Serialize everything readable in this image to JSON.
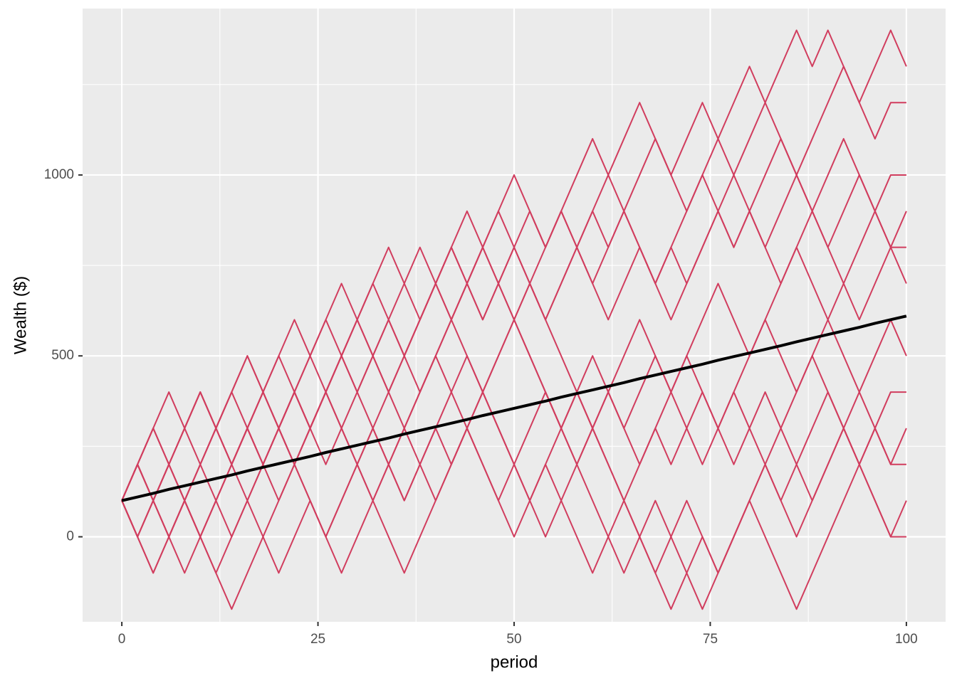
{
  "chart_data": {
    "type": "line",
    "x_label": "period",
    "y_label": "Wealth ($)",
    "x": [
      0,
      2,
      4,
      6,
      8,
      10,
      12,
      14,
      16,
      18,
      20,
      22,
      24,
      26,
      28,
      30,
      32,
      34,
      36,
      38,
      40,
      42,
      44,
      46,
      48,
      50,
      52,
      54,
      56,
      58,
      60,
      62,
      64,
      66,
      68,
      70,
      72,
      74,
      76,
      78,
      80,
      82,
      84,
      86,
      88,
      90,
      92,
      94,
      96,
      98,
      100
    ],
    "xlim": [
      -5,
      105
    ],
    "xticks": [
      0,
      25,
      50,
      75,
      100
    ],
    "ylim": [
      -235,
      1460
    ],
    "yticks": [
      0,
      500,
      1000
    ],
    "grid": true,
    "background": "#ebebeb",
    "series": [
      {
        "color": "#d13d5e",
        "values": [
          100,
          200,
          300,
          200,
          300,
          400,
          300,
          400,
          500,
          400,
          500,
          600,
          500,
          600,
          700,
          600,
          700,
          800,
          700,
          800,
          700,
          800,
          900,
          800,
          900,
          1000,
          900,
          800,
          900,
          1000,
          1100,
          1000,
          1100,
          1200,
          1100,
          1000,
          1100,
          1200,
          1100,
          1200,
          1300,
          1200,
          1300,
          1400,
          1300,
          1400,
          1300,
          1200,
          1300,
          1400,
          1300
        ]
      },
      {
        "color": "#d13d5e",
        "values": [
          100,
          200,
          100,
          200,
          300,
          400,
          300,
          200,
          300,
          400,
          500,
          400,
          300,
          400,
          500,
          600,
          500,
          600,
          700,
          600,
          700,
          800,
          700,
          600,
          700,
          800,
          900,
          800,
          900,
          800,
          900,
          1000,
          900,
          1000,
          1100,
          1000,
          900,
          1000,
          1100,
          1000,
          1100,
          1200,
          1100,
          1000,
          1100,
          1200,
          1300,
          1200,
          1100,
          1200,
          1200
        ]
      },
      {
        "color": "#d13d5e",
        "values": [
          100,
          0,
          100,
          200,
          100,
          200,
          300,
          200,
          300,
          200,
          300,
          400,
          300,
          400,
          500,
          400,
          500,
          600,
          500,
          400,
          500,
          600,
          700,
          600,
          700,
          800,
          700,
          600,
          700,
          800,
          700,
          800,
          900,
          800,
          700,
          800,
          900,
          1000,
          900,
          800,
          900,
          1000,
          1100,
          1000,
          900,
          1000,
          1100,
          1000,
          900,
          1000,
          1000
        ]
      },
      {
        "color": "#d13d5e",
        "values": [
          100,
          200,
          300,
          400,
          300,
          400,
          300,
          200,
          300,
          400,
          300,
          200,
          300,
          400,
          500,
          600,
          700,
          600,
          500,
          600,
          700,
          800,
          700,
          800,
          900,
          800,
          700,
          600,
          700,
          800,
          900,
          800,
          900,
          800,
          700,
          800,
          700,
          800,
          900,
          1000,
          900,
          800,
          900,
          1000,
          900,
          800,
          900,
          1000,
          900,
          800,
          900
        ]
      },
      {
        "color": "#d13d5e",
        "values": [
          100,
          0,
          -100,
          0,
          100,
          0,
          100,
          200,
          100,
          200,
          300,
          400,
          500,
          400,
          500,
          600,
          500,
          400,
          500,
          600,
          700,
          600,
          700,
          800,
          700,
          600,
          700,
          800,
          900,
          800,
          700,
          600,
          700,
          800,
          700,
          600,
          700,
          800,
          900,
          800,
          900,
          800,
          700,
          800,
          900,
          800,
          700,
          800,
          900,
          800,
          800
        ]
      },
      {
        "color": "#d13d5e",
        "values": [
          100,
          200,
          300,
          200,
          100,
          200,
          300,
          400,
          500,
          400,
          300,
          200,
          300,
          400,
          300,
          200,
          100,
          200,
          300,
          400,
          500,
          600,
          500,
          400,
          500,
          600,
          500,
          400,
          300,
          400,
          500,
          400,
          500,
          600,
          500,
          400,
          500,
          600,
          700,
          600,
          500,
          600,
          700,
          800,
          700,
          600,
          700,
          600,
          700,
          800,
          700
        ]
      },
      {
        "color": "#d13d5e",
        "values": [
          100,
          0,
          100,
          0,
          -100,
          0,
          100,
          200,
          300,
          200,
          100,
          200,
          300,
          400,
          300,
          200,
          300,
          200,
          100,
          200,
          300,
          400,
          500,
          400,
          500,
          600,
          700,
          600,
          500,
          400,
          300,
          400,
          300,
          200,
          300,
          400,
          500,
          400,
          300,
          400,
          500,
          600,
          500,
          400,
          500,
          600,
          500,
          400,
          500,
          600,
          500
        ]
      },
      {
        "color": "#d13d5e",
        "values": [
          100,
          200,
          100,
          0,
          100,
          200,
          300,
          400,
          300,
          200,
          300,
          400,
          500,
          600,
          500,
          400,
          300,
          400,
          500,
          600,
          700,
          600,
          700,
          800,
          700,
          600,
          500,
          400,
          300,
          200,
          300,
          200,
          100,
          200,
          300,
          200,
          300,
          400,
          300,
          200,
          300,
          400,
          300,
          200,
          100,
          200,
          300,
          400,
          300,
          400,
          400
        ]
      },
      {
        "color": "#d13d5e",
        "values": [
          100,
          0,
          -100,
          0,
          100,
          0,
          -100,
          -200,
          -100,
          0,
          100,
          200,
          100,
          0,
          100,
          200,
          300,
          200,
          300,
          400,
          500,
          400,
          300,
          200,
          100,
          200,
          100,
          0,
          100,
          200,
          300,
          400,
          300,
          400,
          500,
          400,
          300,
          200,
          300,
          400,
          300,
          200,
          300,
          400,
          500,
          400,
          300,
          200,
          300,
          200,
          300
        ]
      },
      {
        "color": "#d13d5e",
        "values": [
          100,
          200,
          100,
          200,
          300,
          200,
          100,
          0,
          100,
          0,
          -100,
          0,
          100,
          0,
          -100,
          0,
          100,
          200,
          100,
          200,
          300,
          200,
          300,
          400,
          300,
          200,
          100,
          200,
          300,
          400,
          300,
          200,
          100,
          0,
          -100,
          0,
          100,
          0,
          -100,
          0,
          100,
          200,
          100,
          200,
          300,
          400,
          300,
          200,
          300,
          200,
          200
        ]
      },
      {
        "color": "#d13d5e",
        "values": [
          100,
          0,
          100,
          200,
          100,
          0,
          100,
          200,
          300,
          400,
          300,
          400,
          300,
          200,
          300,
          400,
          500,
          400,
          300,
          200,
          100,
          200,
          300,
          200,
          100,
          0,
          100,
          200,
          100,
          0,
          -100,
          0,
          100,
          0,
          -100,
          -200,
          -100,
          0,
          -100,
          0,
          100,
          200,
          100,
          0,
          100,
          200,
          300,
          200,
          100,
          0,
          100
        ]
      },
      {
        "color": "#d13d5e",
        "values": [
          100,
          200,
          100,
          0,
          100,
          0,
          -100,
          0,
          100,
          200,
          300,
          200,
          100,
          0,
          100,
          200,
          100,
          0,
          -100,
          0,
          100,
          200,
          300,
          400,
          300,
          200,
          300,
          400,
          300,
          200,
          100,
          0,
          -100,
          0,
          100,
          0,
          -100,
          -200,
          -100,
          0,
          100,
          0,
          -100,
          -200,
          -100,
          0,
          100,
          200,
          100,
          0,
          0
        ]
      },
      {
        "color": "#000000",
        "width": 4,
        "values": [
          100,
          110,
          120,
          131,
          141,
          151,
          161,
          171,
          182,
          192,
          202,
          212,
          222,
          233,
          243,
          253,
          263,
          273,
          284,
          294,
          304,
          314,
          324,
          335,
          345,
          355,
          365,
          375,
          386,
          396,
          406,
          416,
          426,
          437,
          447,
          457,
          467,
          477,
          488,
          498,
          508,
          518,
          528,
          539,
          549,
          559,
          569,
          579,
          590,
          600,
          610
        ]
      }
    ]
  }
}
